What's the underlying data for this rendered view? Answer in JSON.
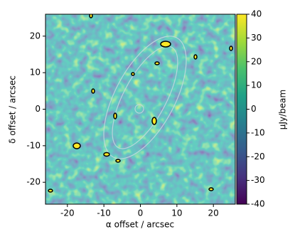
{
  "chart_data": {
    "type": "heatmap",
    "xlabel": "α offset / arcsec",
    "ylabel": "δ offset / arcsec",
    "xlim": [
      -26,
      26
    ],
    "ylim": [
      -26,
      26
    ],
    "xticks": [
      -20,
      -10,
      0,
      10,
      20
    ],
    "yticks": [
      -20,
      -10,
      0,
      10,
      20
    ],
    "colorbar": {
      "label": "μJy/beam",
      "lim": [
        -40,
        40
      ],
      "ticks": [
        -40,
        -30,
        -20,
        -10,
        0,
        10,
        20,
        30,
        40
      ],
      "colors": [
        "#440154",
        "#46327e",
        "#365c8d",
        "#277f8e",
        "#1fa187",
        "#4ac16d",
        "#a0da39",
        "#fde725"
      ]
    }
  }
}
